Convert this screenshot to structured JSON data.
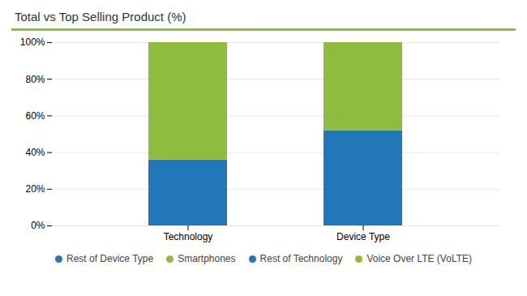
{
  "chart_data": {
    "type": "bar",
    "title": "Total vs Top Selling Product (%)",
    "categories": [
      "Technology",
      "Device Type"
    ],
    "stacked": true,
    "series": [
      {
        "name": "Rest of Device Type",
        "color": "#2277b8",
        "values": [
          null,
          52
        ]
      },
      {
        "name": "Smartphones",
        "color": "#8fbc3f",
        "values": [
          null,
          48
        ]
      },
      {
        "name": "Rest of Technology",
        "color": "#2277b8",
        "values": [
          36,
          null
        ]
      },
      {
        "name": "Voice Over LTE (VoLTE)",
        "color": "#8fbc3f",
        "values": [
          64,
          null
        ]
      }
    ],
    "ylim": [
      0,
      100
    ],
    "yticks": [
      {
        "value": 0,
        "label": "0%"
      },
      {
        "value": 20,
        "label": "20%"
      },
      {
        "value": 40,
        "label": "40%"
      },
      {
        "value": 60,
        "label": "60%"
      },
      {
        "value": 80,
        "label": "80%"
      },
      {
        "value": 100,
        "label": "100%"
      }
    ],
    "grid": true,
    "legend": "bottom"
  }
}
